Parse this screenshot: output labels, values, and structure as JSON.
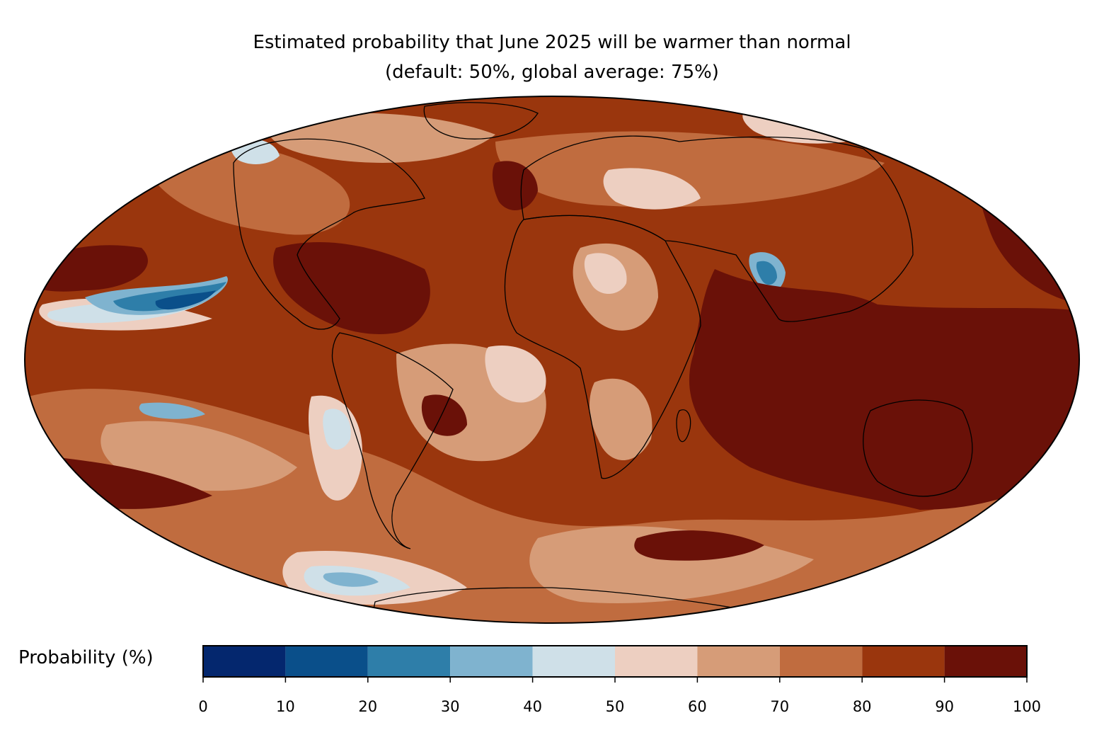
{
  "title": {
    "line1": "Estimated probability that June 2025 will be warmer than normal",
    "line2": "(default: 50%, global average: 75%)"
  },
  "colorbar": {
    "label": "Probability (%)",
    "ticks": [
      "0",
      "10",
      "20",
      "30",
      "40",
      "50",
      "60",
      "70",
      "80",
      "90",
      "100"
    ],
    "bins": [
      {
        "range": [
          0,
          10
        ],
        "color": "#04276e"
      },
      {
        "range": [
          10,
          20
        ],
        "color": "#0a4f8a"
      },
      {
        "range": [
          20,
          30
        ],
        "color": "#2e7ea9"
      },
      {
        "range": [
          30,
          40
        ],
        "color": "#7fb3cf"
      },
      {
        "range": [
          40,
          50
        ],
        "color": "#cfe0e8"
      },
      {
        "range": [
          50,
          60
        ],
        "color": "#edcfc1"
      },
      {
        "range": [
          60,
          70
        ],
        "color": "#d69c78"
      },
      {
        "range": [
          70,
          80
        ],
        "color": "#c06c3f"
      },
      {
        "range": [
          80,
          90
        ],
        "color": "#9a360d"
      },
      {
        "range": [
          90,
          100
        ],
        "color": "#6a1108"
      }
    ]
  }
}
